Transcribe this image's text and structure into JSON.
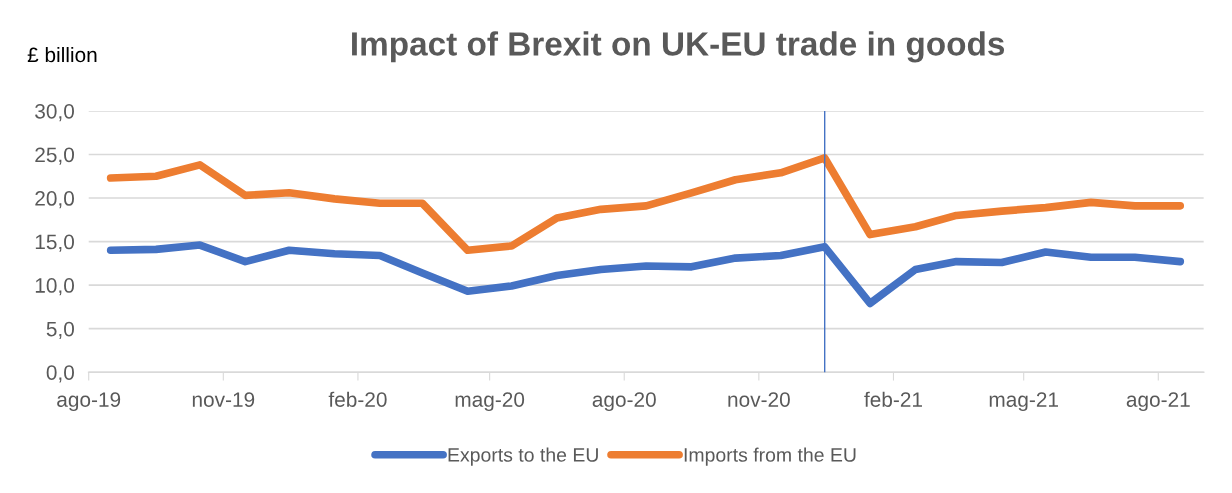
{
  "chart_data": {
    "type": "line",
    "title": "Impact of Brexit on UK-EU trade in goods",
    "ylabel": "£ billion",
    "x": [
      "2019-08-16",
      "2019-09-16",
      "2019-10-16",
      "2019-11-16",
      "2019-12-16",
      "2020-01-16",
      "2020-02-16",
      "2020-03-16",
      "2020-04-16",
      "2020-05-16",
      "2020-06-16",
      "2020-07-16",
      "2020-08-16",
      "2020-09-16",
      "2020-10-16",
      "2020-11-16",
      "2020-12-16",
      "2021-01-16",
      "2021-02-16",
      "2021-03-16",
      "2021-04-16",
      "2021-05-16",
      "2021-06-16",
      "2021-07-16",
      "2021-08-16"
    ],
    "series": [
      {
        "name": "Exports to the EU",
        "color": "#4472c4",
        "values": [
          14.0,
          14.1,
          14.6,
          12.7,
          14.0,
          13.6,
          13.4,
          11.4,
          9.3,
          9.9,
          11.1,
          11.8,
          12.2,
          12.1,
          13.1,
          13.4,
          14.4,
          7.9,
          11.8,
          12.7,
          12.6,
          13.8,
          13.2,
          13.2,
          12.7
        ]
      },
      {
        "name": "Imports from the EU",
        "color": "#ed7d31",
        "values": [
          22.3,
          22.5,
          23.8,
          20.3,
          20.6,
          19.9,
          19.4,
          19.4,
          14.0,
          14.5,
          17.7,
          18.7,
          19.1,
          20.6,
          22.1,
          22.9,
          24.6,
          15.8,
          16.7,
          18.0,
          18.5,
          18.9,
          19.5,
          19.1,
          19.1
        ]
      }
    ],
    "xlim": [
      "2019-08-01",
      "2021-09-01"
    ],
    "xticks": [
      {
        "value": "2019-08-01",
        "label": "ago-19"
      },
      {
        "value": "2019-11-01",
        "label": "nov-19"
      },
      {
        "value": "2020-02-01",
        "label": "feb-20"
      },
      {
        "value": "2020-05-01",
        "label": "mag-20"
      },
      {
        "value": "2020-08-01",
        "label": "ago-20"
      },
      {
        "value": "2020-11-01",
        "label": "nov-20"
      },
      {
        "value": "2021-02-01",
        "label": "feb-21"
      },
      {
        "value": "2021-05-01",
        "label": "mag-21"
      },
      {
        "value": "2021-08-01",
        "label": "ago-21"
      }
    ],
    "ylim": [
      0,
      30
    ],
    "yticks": [
      {
        "value": 0,
        "label": "0,0"
      },
      {
        "value": 5,
        "label": "5,0"
      },
      {
        "value": 10,
        "label": "10,0"
      },
      {
        "value": 15,
        "label": "15,0"
      },
      {
        "value": 20,
        "label": "20,0"
      },
      {
        "value": 25,
        "label": "25,0"
      },
      {
        "value": 30,
        "label": "30,0"
      }
    ],
    "ref_lines": [
      {
        "axis": "x",
        "value": "2020-12-16",
        "color": "#4472c4"
      }
    ],
    "grid": "y",
    "legend": "bottom",
    "marker": "none",
    "line_style": "solid"
  }
}
